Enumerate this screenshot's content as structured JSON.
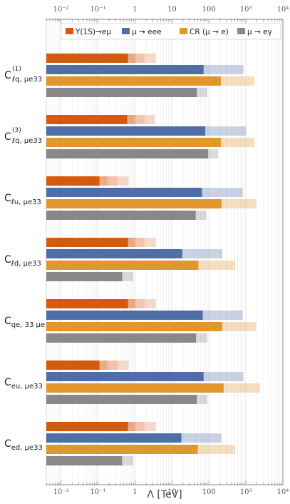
{
  "chart_data": {
    "type": "bar",
    "orientation": "horizontal",
    "xscale": "log",
    "xlim": [
      0.004,
      10000
    ],
    "xlabel": "Λ [TeV]",
    "x_tick_labels": [
      "10⁻²",
      "10⁻¹",
      "1",
      "10",
      "100",
      "10³",
      "10⁴"
    ],
    "grid": true,
    "legend_position": "top-right",
    "colors": {
      "upsilon": "#d35a0e",
      "mu3e": "#4f6ea8",
      "cr": "#e19630",
      "mueg": "#888888"
    },
    "legend": [
      {
        "key": "upsilon",
        "label": "Υ(1S)→eμ"
      },
      {
        "key": "mu3e",
        "label": "μ → eee"
      },
      {
        "key": "cr",
        "label": "CR (μ → e)"
      },
      {
        "key": "mueg",
        "label": "μ → eγ"
      }
    ],
    "categories": [
      {
        "label_main": "C",
        "label_sup": "(1)",
        "label_sub": "ℓq, μe33"
      },
      {
        "label_main": "C",
        "label_sup": "(3)",
        "label_sub": "ℓq, μe33"
      },
      {
        "label_main": "C",
        "label_sup": "",
        "label_sub": "ℓu, μe33"
      },
      {
        "label_main": "C",
        "label_sup": "",
        "label_sub": "ℓd, μe33"
      },
      {
        "label_main": "C",
        "label_sup": "",
        "label_sub": "qe, 33 μe"
      },
      {
        "label_main": "C",
        "label_sup": "",
        "label_sub": "eu, μe33"
      },
      {
        "label_main": "C",
        "label_sup": "",
        "label_sub": "ed, μe33"
      }
    ],
    "series": [
      {
        "key": "upsilon",
        "values": [
          0.65,
          0.62,
          0.11,
          0.65,
          0.65,
          0.11,
          0.65
        ],
        "extensions": [
          [
            1.0,
            1.8,
            3.7
          ],
          [
            1.0,
            1.8,
            3.5
          ],
          [
            0.18,
            0.35,
            0.68
          ],
          [
            1.0,
            1.8,
            3.7
          ],
          [
            1.0,
            1.8,
            3.7
          ],
          [
            0.18,
            0.35,
            0.68
          ],
          [
            1.0,
            1.8,
            3.7
          ]
        ]
      },
      {
        "key": "mu3e",
        "values": [
          72,
          80,
          65,
          19,
          68,
          72,
          18
        ],
        "extensions": [
          850,
          1000,
          820,
          230,
          820,
          850,
          220
        ]
      },
      {
        "key": "cr",
        "values": [
          210,
          210,
          220,
          52,
          230,
          250,
          50
        ],
        "extensions": [
          1700,
          1700,
          1900,
          510,
          1900,
          2400,
          510
        ]
      },
      {
        "key": "mueg",
        "values": [
          47,
          95,
          44,
          0.45,
          45,
          47,
          0.45
        ],
        "extensions": [
          90,
          180,
          85,
          0.9,
          90,
          90,
          0.9
        ]
      }
    ]
  }
}
